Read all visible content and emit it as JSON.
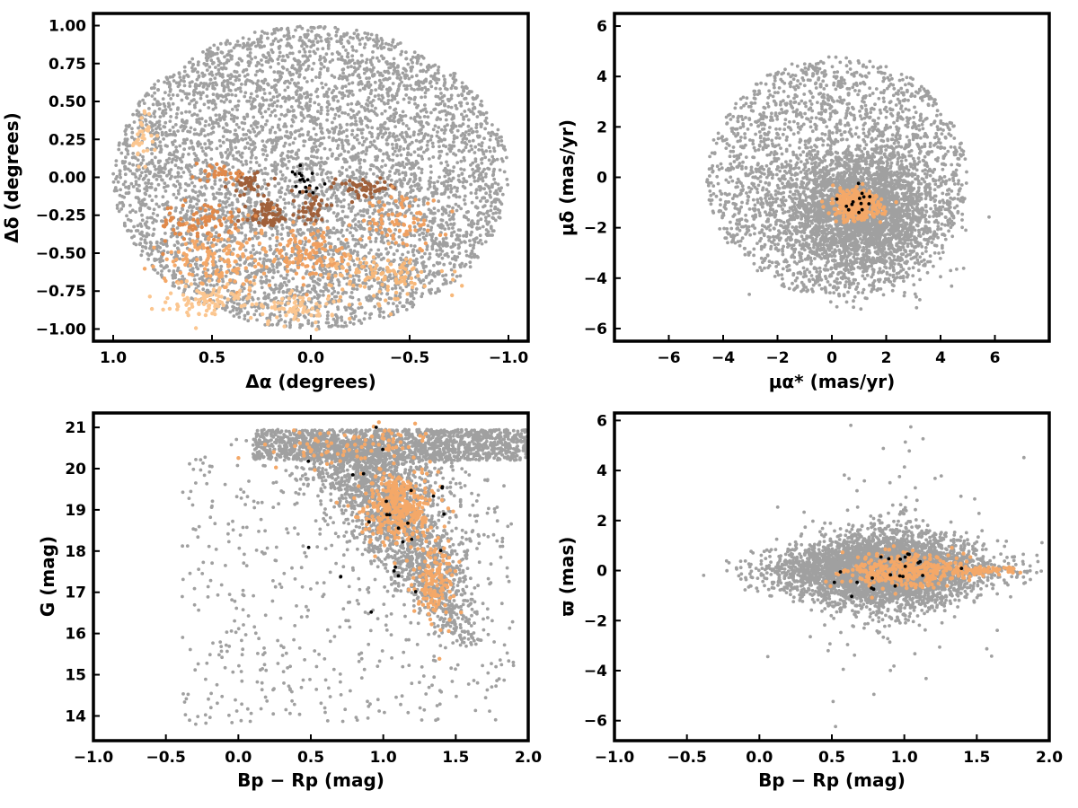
{
  "chart_data": [
    {
      "id": "sky",
      "type": "scatter",
      "xlabel": "Δα (degrees)",
      "ylabel": "Δδ (degrees)",
      "xlim": [
        1.1,
        -1.1
      ],
      "ylim": [
        -1.08,
        1.08
      ],
      "xticks": [
        1.0,
        0.5,
        0.0,
        -0.5,
        -1.0
      ],
      "xtick_labels": [
        "1.0",
        "0.5",
        "0.0",
        "−0.5",
        "−1.0"
      ],
      "yticks": [
        1.0,
        0.75,
        0.5,
        0.25,
        0.0,
        -0.25,
        -0.5,
        -0.75,
        -1.0
      ],
      "ytick_labels": [
        "1.00",
        "0.75",
        "0.50",
        "0.25",
        "0.00",
        "−0.25",
        "−0.50",
        "−0.75",
        "−1.00"
      ],
      "field": {
        "shape": "ellipse",
        "center": [
          0,
          0
        ],
        "semi_axes": [
          1.0,
          1.0
        ],
        "count": 5200
      },
      "clusters": [
        {
          "center": [
            0.04,
            0.0
          ],
          "spread": [
            0.05,
            0.05
          ],
          "count": 18,
          "color": "#000000"
        },
        {
          "center": [
            0.32,
            -0.04
          ],
          "spread": [
            0.05,
            0.04
          ],
          "count": 40,
          "color": "#a0603a"
        },
        {
          "center": [
            0.22,
            -0.25
          ],
          "spread": [
            0.06,
            0.05
          ],
          "count": 70,
          "color": "#a0603a"
        },
        {
          "center": [
            0.0,
            -0.2
          ],
          "spread": [
            0.05,
            0.05
          ],
          "count": 40,
          "color": "#a0603a"
        },
        {
          "center": [
            -0.27,
            -0.07
          ],
          "spread": [
            0.07,
            0.03
          ],
          "count": 55,
          "color": "#a0603a"
        },
        {
          "center": [
            0.45,
            0.02
          ],
          "spread": [
            0.07,
            0.025
          ],
          "count": 35,
          "color": "#e0894a"
        },
        {
          "center": [
            0.55,
            -0.3
          ],
          "spread": [
            0.12,
            0.06
          ],
          "count": 90,
          "color": "#e0894a"
        },
        {
          "center": [
            -0.45,
            -0.3
          ],
          "spread": [
            0.1,
            0.08
          ],
          "count": 80,
          "color": "#f0a060"
        },
        {
          "center": [
            0.0,
            -0.5
          ],
          "spread": [
            0.1,
            0.08
          ],
          "count": 110,
          "color": "#f0a060"
        },
        {
          "center": [
            0.45,
            -0.55
          ],
          "spread": [
            0.15,
            0.1
          ],
          "count": 150,
          "color": "#f4a868"
        },
        {
          "center": [
            -0.35,
            -0.65
          ],
          "spread": [
            0.15,
            0.08
          ],
          "count": 120,
          "color": "#f7b87a"
        },
        {
          "center": [
            0.5,
            -0.8
          ],
          "spread": [
            0.12,
            0.06
          ],
          "count": 90,
          "color": "#fbc690"
        },
        {
          "center": [
            0.1,
            -0.87
          ],
          "spread": [
            0.1,
            0.05
          ],
          "count": 70,
          "color": "#fbc690"
        },
        {
          "center": [
            0.85,
            0.25
          ],
          "spread": [
            0.03,
            0.1
          ],
          "count": 35,
          "color": "#fbc690"
        }
      ]
    },
    {
      "id": "pm",
      "type": "scatter",
      "xlabel": "μα* (mas/yr)",
      "ylabel": "μδ (mas/yr)",
      "xlim": [
        -8,
        8
      ],
      "ylim": [
        -6.5,
        6.5
      ],
      "xticks": [
        -6,
        -4,
        -2,
        0,
        2,
        4,
        6
      ],
      "xtick_labels": [
        "−6",
        "−4",
        "−2",
        "0",
        "2",
        "4",
        "6"
      ],
      "yticks": [
        6,
        4,
        2,
        0,
        -2,
        -4,
        -6
      ],
      "ytick_labels": [
        "6",
        "4",
        "2",
        "0",
        "−2",
        "−4",
        "−6"
      ],
      "field": {
        "shape": "disk",
        "center": [
          0.2,
          0.0
        ],
        "radius": 4.8,
        "core_center": [
          1.0,
          -1.3
        ],
        "core_spread": [
          1.4,
          1.2
        ],
        "count": 5000
      },
      "clusters": [
        {
          "center": [
            0.9,
            -1.1
          ],
          "spread": [
            0.45,
            0.3
          ],
          "count": 300,
          "color": "#f4a868"
        },
        {
          "center": [
            1.0,
            -1.1
          ],
          "spread": [
            0.35,
            0.3
          ],
          "count": 14,
          "color": "#000000"
        }
      ]
    },
    {
      "id": "cmd",
      "type": "scatter",
      "xlabel": "Bp − Rp (mag)",
      "ylabel": "G (mag)",
      "xlim": [
        -1.0,
        2.0
      ],
      "ylim": [
        13.4,
        21.35
      ],
      "y_inverted": false,
      "xticks": [
        -1.0,
        -0.5,
        0.0,
        0.5,
        1.0,
        1.5,
        2.0
      ],
      "xtick_labels": [
        "−1.0",
        "−0.5",
        "0.0",
        "0.5",
        "1.0",
        "1.5",
        "2.0"
      ],
      "yticks": [
        21,
        20,
        19,
        18,
        17,
        16,
        15,
        14
      ],
      "ytick_labels": [
        "21",
        "20",
        "19",
        "18",
        "17",
        "16",
        "15",
        "14"
      ],
      "field": {
        "shape": "sequence",
        "count": 4200
      },
      "clusters": [
        {
          "center": [
            1.1,
            19.1
          ],
          "spread": [
            0.12,
            0.45
          ],
          "count": 350,
          "color": "#f4a868"
        },
        {
          "center": [
            1.35,
            17.3
          ],
          "spread": [
            0.08,
            0.5
          ],
          "count": 140,
          "color": "#f4a868"
        },
        {
          "center": [
            0.8,
            20.6
          ],
          "spread": [
            0.25,
            0.25
          ],
          "count": 80,
          "color": "#f4a868"
        },
        {
          "center": [
            1.05,
            18.8
          ],
          "spread": [
            0.2,
            1.0
          ],
          "count": 26,
          "color": "#000000"
        }
      ]
    },
    {
      "id": "plx",
      "type": "scatter",
      "xlabel": "Bp − Rp (mag)",
      "ylabel": "ϖ (mas)",
      "xlim": [
        -1.0,
        2.0
      ],
      "ylim": [
        -6.8,
        6.3
      ],
      "xticks": [
        -1.0,
        -0.5,
        0.0,
        0.5,
        1.0,
        1.5,
        2.0
      ],
      "xtick_labels": [
        "−1.0",
        "−0.5",
        "0.0",
        "0.5",
        "1.0",
        "1.5",
        "2.0"
      ],
      "yticks": [
        6,
        4,
        2,
        0,
        -2,
        -4,
        -6
      ],
      "ytick_labels": [
        "6",
        "4",
        "2",
        "0",
        "−2",
        "−4",
        "−6"
      ],
      "field": {
        "shape": "band",
        "count": 4200
      },
      "clusters": [
        {
          "center": [
            1.0,
            0.0
          ],
          "spread": [
            0.2,
            0.35
          ],
          "count": 350,
          "color": "#f4a868"
        },
        {
          "center": [
            1.5,
            0.0
          ],
          "spread": [
            0.15,
            0.1
          ],
          "count": 90,
          "color": "#f4a868"
        },
        {
          "center": [
            1.0,
            -0.1
          ],
          "spread": [
            0.25,
            0.6
          ],
          "count": 22,
          "color": "#000000"
        }
      ]
    }
  ],
  "colors": {
    "field": "#a0a0a0",
    "member_dark": "#a0603a",
    "member_mid": "#f4a868",
    "member_light": "#fbc690",
    "center": "#000000"
  }
}
